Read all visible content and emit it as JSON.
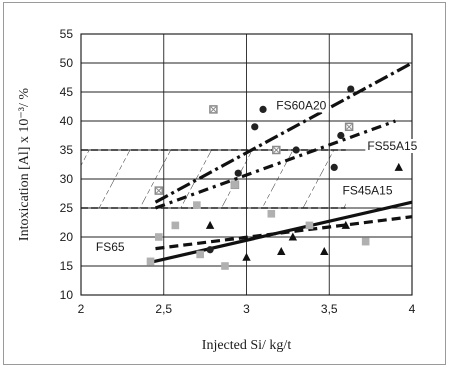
{
  "chart_data": {
    "type": "scatter",
    "title": "",
    "xlabel": "Injected Si/ kg/t",
    "ylabel": "Intoxication [Al] x 10⁻³/ %",
    "xlim": [
      2,
      4
    ],
    "ylim": [
      10,
      55
    ],
    "xticks": [
      2,
      2.5,
      3,
      3.5,
      4
    ],
    "xtick_labels": [
      "2",
      "2,5",
      "3",
      "3,5",
      "4"
    ],
    "yticks": [
      10,
      15,
      20,
      25,
      30,
      35,
      40,
      45,
      50,
      55
    ],
    "ytick_labels": [
      "10",
      "15",
      "20",
      "25",
      "30",
      "35",
      "40",
      "45",
      "50",
      "55"
    ],
    "grid": true,
    "target_band": {
      "y_range": [
        25,
        35
      ],
      "x_range": [
        2,
        3.6
      ],
      "fill": "hatched"
    },
    "series": [
      {
        "name": "FS60A20",
        "marker": "circle",
        "color": "#222222",
        "points": [
          [
            2.78,
            17.8
          ],
          [
            2.95,
            31
          ],
          [
            3.05,
            39
          ],
          [
            3.1,
            42
          ],
          [
            3.3,
            35
          ],
          [
            3.53,
            32
          ],
          [
            3.57,
            37.5
          ],
          [
            3.63,
            45.5
          ],
          [
            3.98,
            35.7
          ]
        ],
        "trend": [
          [
            2.45,
            26
          ],
          [
            4.0,
            50
          ]
        ]
      },
      {
        "name": "FS55A15",
        "marker": "square-x",
        "color": "#8a8a8a",
        "points": [
          [
            2.47,
            28
          ],
          [
            2.8,
            42
          ],
          [
            2.93,
            29
          ],
          [
            3.62,
            39
          ],
          [
            3.18,
            35
          ]
        ],
        "trend": [
          [
            2.45,
            25
          ],
          [
            3.9,
            40
          ]
        ]
      },
      {
        "name": "FS45A15",
        "marker": "triangle",
        "color": "#111111",
        "points": [
          [
            2.78,
            22
          ],
          [
            3.0,
            16.5
          ],
          [
            3.21,
            17.5
          ],
          [
            3.28,
            20
          ],
          [
            3.47,
            17.5
          ],
          [
            3.92,
            32
          ],
          [
            3.6,
            22
          ]
        ],
        "trend": [
          [
            2.45,
            18
          ],
          [
            4.0,
            23.5
          ]
        ]
      },
      {
        "name": "FS65",
        "marker": "square",
        "color": "#b0b0b0",
        "points": [
          [
            2.42,
            15.8
          ],
          [
            2.47,
            20
          ],
          [
            2.57,
            22
          ],
          [
            2.7,
            25.5
          ],
          [
            2.72,
            17
          ],
          [
            2.87,
            15
          ],
          [
            2.93,
            29
          ],
          [
            3.15,
            24
          ],
          [
            3.38,
            22
          ],
          [
            3.72,
            19.2
          ]
        ],
        "trend": [
          [
            2.4,
            15.5
          ],
          [
            4.0,
            26
          ]
        ]
      }
    ],
    "annotations": [
      {
        "text": "FS60A20",
        "x": 3.18,
        "y": 42
      },
      {
        "text": "FS55A15",
        "x": 3.73,
        "y": 35
      },
      {
        "text": "FS45A15",
        "x": 3.58,
        "y": 27.3
      },
      {
        "text": "FS65",
        "x": 2.09,
        "y": 17.6
      }
    ]
  }
}
